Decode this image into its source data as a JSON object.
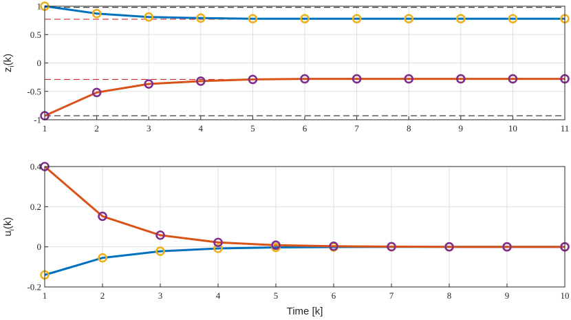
{
  "chart_data": [
    {
      "type": "line",
      "title": "",
      "xlabel": "",
      "ylabel_main": "z",
      "ylabel_sub": "i",
      "ylabel_arg": "(k)",
      "xlim": [
        1,
        11
      ],
      "ylim": [
        -1,
        1
      ],
      "grid": true,
      "x": [
        1,
        2,
        3,
        4,
        5,
        6,
        7,
        8,
        9,
        10,
        11
      ],
      "xticks": [
        "1",
        "2",
        "3",
        "4",
        "5",
        "6",
        "7",
        "8",
        "9",
        "10",
        "11"
      ],
      "yticks": [
        {
          "v": -1,
          "label": "-1"
        },
        {
          "v": -0.5,
          "label": "-0.5"
        },
        {
          "v": 0,
          "label": "0"
        },
        {
          "v": 0.5,
          "label": "0.5"
        },
        {
          "v": 1,
          "label": "1"
        }
      ],
      "series": [
        {
          "color": "#0072BD",
          "marker_color": "#EDB120",
          "values": [
            1.0,
            0.87,
            0.81,
            0.79,
            0.78,
            0.78,
            0.78,
            0.78,
            0.78,
            0.78,
            0.78
          ]
        },
        {
          "color": "#D95319",
          "marker_color": "#7E2F8E",
          "values": [
            -0.93,
            -0.52,
            -0.37,
            -0.32,
            -0.29,
            -0.28,
            -0.28,
            -0.28,
            -0.28,
            -0.28,
            -0.28
          ]
        }
      ],
      "reference_lines": [
        {
          "y": 0.98,
          "color": "#262626"
        },
        {
          "y": -0.93,
          "color": "#262626"
        },
        {
          "y": 0.77,
          "color": "#d62728"
        },
        {
          "y": -0.29,
          "color": "#d62728"
        }
      ]
    },
    {
      "type": "line",
      "title": "",
      "xlabel": "Time [k]",
      "ylabel_main": "u",
      "ylabel_sub": "i",
      "ylabel_arg": "(k)",
      "xlim": [
        1,
        10
      ],
      "ylim": [
        -0.2,
        0.4
      ],
      "grid": true,
      "x": [
        1,
        2,
        3,
        4,
        5,
        6,
        7,
        8,
        9,
        10
      ],
      "xticks": [
        "1",
        "2",
        "3",
        "4",
        "5",
        "6",
        "7",
        "8",
        "9",
        "10"
      ],
      "yticks": [
        {
          "v": -0.2,
          "label": "-0.2"
        },
        {
          "v": 0,
          "label": "0"
        },
        {
          "v": 0.2,
          "label": "0.2"
        },
        {
          "v": 0.4,
          "label": "0.4"
        }
      ],
      "series": [
        {
          "color": "#0072BD",
          "marker_color": "#EDB120",
          "values": [
            -0.14,
            -0.055,
            -0.022,
            -0.008,
            -0.003,
            -0.001,
            0.0,
            0.0,
            0.0,
            0.0
          ]
        },
        {
          "color": "#D95319",
          "marker_color": "#7E2F8E",
          "values": [
            0.4,
            0.152,
            0.058,
            0.022,
            0.008,
            0.003,
            0.001,
            0.0,
            0.0,
            0.0
          ]
        }
      ],
      "reference_lines": []
    }
  ]
}
